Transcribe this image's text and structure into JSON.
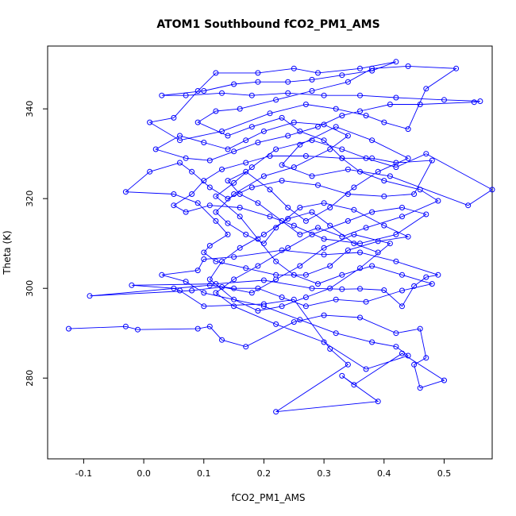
{
  "chart_data": {
    "type": "scatter",
    "title": "ATOM1 Southbound fCO2_PM1_AMS",
    "xlabel": "fCO2_PM1_AMS",
    "ylabel": "Theta (K)",
    "xlim": [
      -0.16,
      0.58
    ],
    "ylim": [
      262,
      354
    ],
    "xticks": [
      -0.1,
      0.0,
      0.1,
      0.2,
      0.3,
      0.4,
      0.5
    ],
    "xtick_labels": [
      "-0.1",
      "0.0",
      "0.1",
      "0.2",
      "0.3",
      "0.4",
      "0.5"
    ],
    "yticks": [
      280,
      300,
      320,
      340
    ],
    "ytick_labels": [
      "280",
      "300",
      "320",
      "340"
    ],
    "grid": false,
    "series_color": "#0000ff",
    "marker": "open-circle",
    "line_connected": true,
    "series": [
      {
        "values": [
          [
            -0.125,
            291.0
          ],
          [
            -0.03,
            291.5
          ],
          [
            -0.01,
            290.8
          ],
          [
            0.09,
            291.0
          ],
          [
            0.11,
            291.5
          ],
          [
            0.13,
            288.5
          ],
          [
            0.17,
            287.0
          ],
          [
            0.25,
            292.5
          ],
          [
            0.3,
            294.0
          ],
          [
            0.36,
            293.5
          ],
          [
            0.42,
            290.0
          ],
          [
            0.46,
            291.0
          ],
          [
            0.47,
            284.5
          ],
          [
            0.45,
            283.0
          ],
          [
            0.46,
            277.8
          ],
          [
            0.5,
            279.5
          ],
          [
            0.43,
            285.5
          ],
          [
            0.35,
            278.5
          ],
          [
            0.33,
            280.5
          ],
          [
            0.39,
            274.8
          ],
          [
            0.22,
            272.5
          ],
          [
            0.34,
            283.0
          ],
          [
            0.31,
            286.5
          ],
          [
            0.25,
            297.5
          ],
          [
            0.2,
            296.5
          ],
          [
            0.1,
            296.0
          ],
          [
            0.06,
            299.5
          ],
          [
            0.05,
            300.0
          ],
          [
            -0.02,
            300.7
          ],
          [
            0.12,
            301.0
          ],
          [
            0.2,
            301.8
          ],
          [
            0.28,
            300.0
          ],
          [
            0.33,
            299.8
          ],
          [
            0.36,
            299.9
          ],
          [
            0.4,
            299.6
          ],
          [
            0.43,
            296.0
          ],
          [
            0.45,
            300.5
          ],
          [
            0.47,
            302.5
          ],
          [
            0.49,
            303.0
          ],
          [
            0.42,
            306.0
          ],
          [
            0.36,
            308.0
          ],
          [
            0.3,
            307.5
          ],
          [
            0.23,
            308.5
          ],
          [
            0.15,
            307.0
          ],
          [
            0.1,
            306.5
          ],
          [
            0.09,
            304.0
          ],
          [
            0.03,
            303.0
          ],
          [
            0.07,
            301.5
          ],
          [
            0.1,
            299.0
          ],
          [
            0.2,
            296.0
          ],
          [
            0.26,
            293.0
          ],
          [
            0.32,
            290.0
          ],
          [
            0.38,
            288.0
          ],
          [
            0.42,
            287.0
          ],
          [
            0.44,
            285.0
          ],
          [
            0.37,
            282.0
          ],
          [
            0.3,
            288.0
          ],
          [
            0.22,
            292.0
          ],
          [
            0.15,
            296.0
          ],
          [
            0.12,
            299.0
          ],
          [
            0.15,
            302.0
          ],
          [
            0.19,
            305.0
          ],
          [
            0.24,
            309.0
          ],
          [
            0.28,
            312.0
          ],
          [
            0.34,
            315.0
          ],
          [
            0.38,
            317.0
          ],
          [
            0.43,
            318.0
          ],
          [
            0.47,
            316.5
          ],
          [
            0.42,
            312.0
          ],
          [
            0.36,
            310.0
          ],
          [
            0.3,
            311.0
          ],
          [
            0.25,
            314.0
          ],
          [
            0.21,
            316.0
          ],
          [
            0.16,
            318.0
          ],
          [
            0.11,
            318.5
          ],
          [
            0.07,
            317.0
          ],
          [
            0.05,
            318.5
          ],
          [
            0.08,
            321.0
          ],
          [
            0.1,
            324.0
          ],
          [
            0.13,
            326.5
          ],
          [
            0.17,
            328.0
          ],
          [
            0.21,
            329.5
          ],
          [
            0.27,
            329.5
          ],
          [
            0.33,
            329.0
          ],
          [
            0.38,
            329.0
          ],
          [
            0.42,
            328.0
          ],
          [
            0.48,
            328.5
          ],
          [
            0.45,
            321.0
          ],
          [
            0.4,
            320.5
          ],
          [
            0.34,
            321.0
          ],
          [
            0.29,
            323.0
          ],
          [
            0.23,
            324.0
          ],
          [
            0.18,
            322.5
          ],
          [
            0.14,
            320.0
          ],
          [
            0.11,
            322.5
          ],
          [
            0.08,
            326.0
          ],
          [
            0.06,
            328.0
          ],
          [
            0.01,
            326.0
          ],
          [
            -0.03,
            321.5
          ],
          [
            0.05,
            321.0
          ],
          [
            0.09,
            319.0
          ],
          [
            0.12,
            315.0
          ],
          [
            0.14,
            312.0
          ],
          [
            0.11,
            309.5
          ],
          [
            0.1,
            308.0
          ],
          [
            0.12,
            306.0
          ],
          [
            0.17,
            304.5
          ],
          [
            0.22,
            303.0
          ],
          [
            0.27,
            303.0
          ],
          [
            0.31,
            305.0
          ],
          [
            0.34,
            308.5
          ],
          [
            0.39,
            310.5
          ],
          [
            0.44,
            311.5
          ],
          [
            0.4,
            314.0
          ],
          [
            0.35,
            317.5
          ],
          [
            0.3,
            319.0
          ],
          [
            0.26,
            318.0
          ],
          [
            0.22,
            313.5
          ],
          [
            0.2,
            310.0
          ],
          [
            0.17,
            312.0
          ],
          [
            0.14,
            314.5
          ],
          [
            0.12,
            317.0
          ],
          [
            0.15,
            321.0
          ],
          [
            0.2,
            325.0
          ],
          [
            0.25,
            327.0
          ],
          [
            0.31,
            331.0
          ],
          [
            0.34,
            334.0
          ],
          [
            0.3,
            336.5
          ],
          [
            0.25,
            337.0
          ],
          [
            0.2,
            335.0
          ],
          [
            0.17,
            333.0
          ],
          [
            0.14,
            331.0
          ],
          [
            0.1,
            332.5
          ],
          [
            0.06,
            334.0
          ],
          [
            0.02,
            331.0
          ],
          [
            0.07,
            329.0
          ],
          [
            0.11,
            328.5
          ],
          [
            0.15,
            330.5
          ],
          [
            0.19,
            332.5
          ],
          [
            0.24,
            334.0
          ],
          [
            0.29,
            336.0
          ],
          [
            0.33,
            338.5
          ],
          [
            0.36,
            339.5
          ],
          [
            0.41,
            341.0
          ],
          [
            0.46,
            341.0
          ],
          [
            0.55,
            341.5
          ],
          [
            0.56,
            341.7
          ],
          [
            0.5,
            342.0
          ],
          [
            0.42,
            342.5
          ],
          [
            0.36,
            343.0
          ],
          [
            0.3,
            343.0
          ],
          [
            0.24,
            343.5
          ],
          [
            0.18,
            343.0
          ],
          [
            0.13,
            343.5
          ],
          [
            0.07,
            343.0
          ],
          [
            0.03,
            343.0
          ],
          [
            0.1,
            344.0
          ],
          [
            0.15,
            345.5
          ],
          [
            0.19,
            346.0
          ],
          [
            0.24,
            346.0
          ],
          [
            0.28,
            346.5
          ],
          [
            0.33,
            347.5
          ],
          [
            0.38,
            348.5
          ],
          [
            0.42,
            350.5
          ],
          [
            0.36,
            349.0
          ],
          [
            0.29,
            348.0
          ],
          [
            0.25,
            349.0
          ],
          [
            0.19,
            348.0
          ],
          [
            0.12,
            348.0
          ],
          [
            0.09,
            344.0
          ],
          [
            0.05,
            338.0
          ],
          [
            0.01,
            337.0
          ],
          [
            0.06,
            333.0
          ],
          [
            0.13,
            335.0
          ],
          [
            0.21,
            339.0
          ],
          [
            0.27,
            341.0
          ],
          [
            0.32,
            340.0
          ],
          [
            0.37,
            338.5
          ],
          [
            0.4,
            337.0
          ],
          [
            0.44,
            335.5
          ],
          [
            0.47,
            344.5
          ],
          [
            0.52,
            349.0
          ],
          [
            0.44,
            349.5
          ],
          [
            0.38,
            349.0
          ],
          [
            0.34,
            346.0
          ],
          [
            0.28,
            344.0
          ],
          [
            0.22,
            342.0
          ],
          [
            0.16,
            340.0
          ],
          [
            0.12,
            339.5
          ],
          [
            0.09,
            337.0
          ],
          [
            0.14,
            334.0
          ],
          [
            0.18,
            336.0
          ],
          [
            0.23,
            338.0
          ],
          [
            0.26,
            335.0
          ],
          [
            0.3,
            333.0
          ],
          [
            0.33,
            329.0
          ],
          [
            0.36,
            326.0
          ],
          [
            0.4,
            324.0
          ],
          [
            0.46,
            322.0
          ],
          [
            0.49,
            319.5
          ],
          [
            0.43,
            316.0
          ],
          [
            0.37,
            313.5
          ],
          [
            0.33,
            311.5
          ],
          [
            0.29,
            313.5
          ],
          [
            0.26,
            312.0
          ],
          [
            0.23,
            315.0
          ],
          [
            0.19,
            319.0
          ],
          [
            0.16,
            321.0
          ],
          [
            0.14,
            324.0
          ],
          [
            0.17,
            326.0
          ],
          [
            0.21,
            322.0
          ],
          [
            0.24,
            318.0
          ],
          [
            0.27,
            315.0
          ],
          [
            0.31,
            318.0
          ],
          [
            0.35,
            322.5
          ],
          [
            0.39,
            326.0
          ],
          [
            0.44,
            329.0
          ],
          [
            0.38,
            333.0
          ],
          [
            0.32,
            336.0
          ],
          [
            0.26,
            332.0
          ],
          [
            0.23,
            327.5
          ],
          [
            0.28,
            325.0
          ],
          [
            0.34,
            326.5
          ],
          [
            0.41,
            325.0
          ],
          [
            0.54,
            318.5
          ],
          [
            0.58,
            322.0
          ],
          [
            0.47,
            330.0
          ],
          [
            0.42,
            327.0
          ],
          [
            0.37,
            329.0
          ],
          [
            0.33,
            331.0
          ],
          [
            0.28,
            333.0
          ],
          [
            0.22,
            331.0
          ],
          [
            0.18,
            327.0
          ],
          [
            0.15,
            323.5
          ],
          [
            0.12,
            320.5
          ],
          [
            0.16,
            316.0
          ],
          [
            0.19,
            311.0
          ],
          [
            0.22,
            306.0
          ],
          [
            0.25,
            303.0
          ],
          [
            0.29,
            301.0
          ],
          [
            0.33,
            303.0
          ],
          [
            0.38,
            305.0
          ],
          [
            0.43,
            303.0
          ],
          [
            0.48,
            301.0
          ],
          [
            0.43,
            299.5
          ],
          [
            0.37,
            297.0
          ],
          [
            0.32,
            297.5
          ],
          [
            0.27,
            296.0
          ],
          [
            0.23,
            298.0
          ],
          [
            0.19,
            300.0
          ],
          [
            0.15,
            300.0
          ],
          [
            0.11,
            300.7
          ],
          [
            -0.09,
            298.3
          ],
          [
            0.08,
            299.5
          ],
          [
            0.13,
            300.3
          ],
          [
            0.18,
            299.0
          ],
          [
            0.22,
            302.0
          ],
          [
            0.26,
            305.0
          ],
          [
            0.3,
            309.0
          ],
          [
            0.35,
            312.0
          ],
          [
            0.41,
            310.0
          ],
          [
            0.36,
            304.5
          ],
          [
            0.31,
            300.0
          ],
          [
            0.27,
            298.0
          ],
          [
            0.23,
            296.0
          ],
          [
            0.19,
            295.0
          ],
          [
            0.15,
            297.5
          ],
          [
            0.11,
            302.0
          ],
          [
            0.13,
            306.0
          ],
          [
            0.16,
            309.0
          ],
          [
            0.2,
            312.0
          ],
          [
            0.24,
            315.5
          ],
          [
            0.28,
            317.0
          ],
          [
            0.31,
            314.0
          ],
          [
            0.35,
            310.0
          ],
          [
            0.39,
            308.0
          ]
        ]
      }
    ]
  }
}
